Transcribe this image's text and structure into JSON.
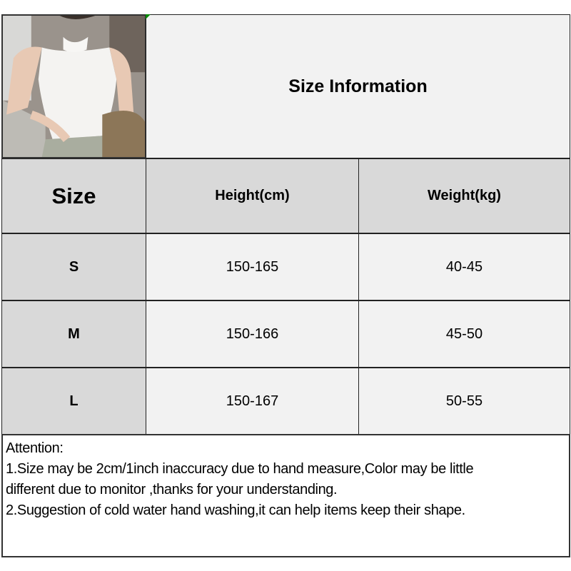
{
  "title": "Size Information",
  "table": {
    "headers": [
      "Size",
      "Height(cm)",
      "Weight(kg)"
    ],
    "rows": [
      {
        "size": "S",
        "height": "150-165",
        "weight": "40-45"
      },
      {
        "size": "M",
        "height": "150-166",
        "weight": "45-50"
      },
      {
        "size": "L",
        "height": "150-167",
        "weight": "50-55"
      }
    ]
  },
  "notes": {
    "heading": "Attention:",
    "line1": "1.Size may be 2cm/1inch inaccuracy due to hand measure,Color may be little",
    "line2": "different due to monitor ,thanks for your understanding.",
    "line3": "2.Suggestion of cold water hand washing,it can help items keep their shape."
  },
  "colors": {
    "header_bg": "#d9d9d9",
    "cell_bg": "#f2f2f2",
    "border": "#222222"
  }
}
